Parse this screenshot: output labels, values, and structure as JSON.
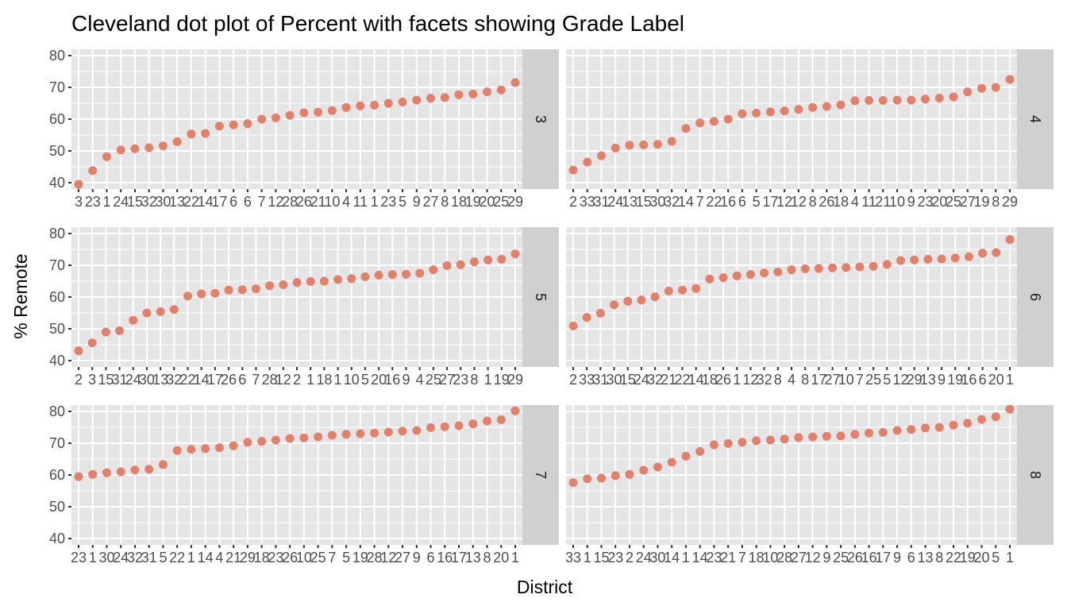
{
  "chart_data": {
    "type": "scatter",
    "title": "Cleveland dot plot of Percent with facets showing Grade Label",
    "xlabel": "District",
    "ylabel": "% Remote",
    "ylim": [
      38,
      82
    ],
    "yticks": [
      40,
      50,
      60,
      70,
      80
    ],
    "grid": true,
    "legend": "none",
    "colors": {
      "point": "#E2806A",
      "panel_bg": "#E5E5E5",
      "grid": "#FFFFFF",
      "strip_bg": "#D0D0D0",
      "tick_text": "#4D4D4D"
    },
    "facets": [
      {
        "label": "3",
        "categories": [
          "3",
          "23",
          "1",
          "24",
          "15",
          "32",
          "30",
          "13",
          "22",
          "14",
          "17",
          "6",
          "6",
          "7",
          "12",
          "28",
          "26",
          "21",
          "10",
          "4",
          "11",
          "1",
          "23",
          "5",
          "9",
          "27",
          "8",
          "18",
          "19",
          "20",
          "25",
          "29"
        ],
        "tick_labels": [
          "3",
          "23",
          "1",
          "24",
          "15",
          "32",
          "30",
          "13",
          "22",
          "14",
          "17",
          "6",
          "6",
          "7",
          "12",
          "28",
          "26",
          "21",
          "10",
          "4",
          "11",
          "1",
          "23",
          "5",
          "9",
          "27",
          "8",
          "18",
          "19",
          "20",
          "25",
          "29"
        ],
        "values": [
          39.5,
          43.8,
          48.2,
          50.3,
          50.7,
          51.0,
          51.6,
          52.9,
          55.3,
          55.5,
          57.8,
          58.2,
          58.6,
          60.0,
          60.4,
          61.2,
          62.0,
          62.2,
          62.7,
          63.7,
          64.2,
          64.4,
          65.0,
          65.4,
          66.0,
          66.6,
          66.8,
          67.7,
          67.9,
          68.6,
          69.2,
          71.5
        ]
      },
      {
        "label": "4",
        "categories": [
          "2",
          "33",
          "31",
          "24",
          "13",
          "15",
          "30",
          "32",
          "14",
          "7",
          "22",
          "16",
          "6",
          "5",
          "17",
          "12",
          "12",
          "8",
          "26",
          "18",
          "4",
          "11",
          "21",
          "10",
          "9",
          "23",
          "20",
          "25",
          "27",
          "19",
          "8",
          "29"
        ],
        "tick_labels": [
          "2",
          "33",
          "31",
          "24",
          "13",
          "15",
          "30",
          "32",
          "14",
          "7",
          "22",
          "16",
          "6",
          "5",
          "17",
          "12",
          "12",
          "8",
          "26",
          "18",
          "4",
          "11",
          "21",
          "10",
          "9",
          "23",
          "20",
          "25",
          "27",
          "19",
          "8",
          "29"
        ],
        "values": [
          44.0,
          46.5,
          48.5,
          50.9,
          51.8,
          51.9,
          52.1,
          53.0,
          57.1,
          58.8,
          59.3,
          60.0,
          61.7,
          61.9,
          62.3,
          62.6,
          63.1,
          63.7,
          64.0,
          64.5,
          65.8,
          65.9,
          65.9,
          66.0,
          66.0,
          66.3,
          66.6,
          67.0,
          68.6,
          69.7,
          70.0,
          72.5
        ]
      },
      {
        "label": "5",
        "categories": [
          "2",
          "3",
          "15",
          "31",
          "24",
          "30",
          "13",
          "32",
          "22",
          "14",
          "17",
          "26",
          "6",
          "7",
          "28",
          "12",
          "2",
          "1",
          "18",
          "1",
          "10",
          "5",
          "20",
          "16",
          "9",
          "4",
          "25",
          "27",
          "23",
          "8",
          "1",
          "19",
          "29"
        ],
        "tick_labels": [
          "2",
          "3",
          "15",
          "31",
          "24",
          "30",
          "13",
          "32",
          "22",
          "14",
          "17",
          "26",
          "6",
          "7",
          "28",
          "12",
          "2",
          "1",
          "18",
          "1",
          "10",
          "5",
          "20",
          "16",
          "9",
          "4",
          "25",
          "27",
          "23",
          "8",
          "1",
          "19",
          "29"
        ],
        "values": [
          43.1,
          45.6,
          49.0,
          49.4,
          52.7,
          55.0,
          55.4,
          56.1,
          60.3,
          61.0,
          61.2,
          62.2,
          62.3,
          62.6,
          63.6,
          63.9,
          64.6,
          64.9,
          65.0,
          65.5,
          65.8,
          66.4,
          66.9,
          67.1,
          67.2,
          67.5,
          68.6,
          69.9,
          70.2,
          71.1,
          71.7,
          71.9,
          73.6
        ]
      },
      {
        "label": "6",
        "categories": [
          "2",
          "33",
          "31",
          "30",
          "15",
          "24",
          "32",
          "21",
          "22",
          "14",
          "18",
          "26",
          "1",
          "12",
          "32",
          "8",
          "4",
          "8",
          "17",
          "27",
          "10",
          "7",
          "25",
          "5",
          "12",
          "29",
          "13",
          "9",
          "19",
          "16",
          "6",
          "20",
          "1"
        ],
        "tick_labels": [
          "2",
          "33",
          "31",
          "30",
          "15",
          "24",
          "32",
          "21",
          "22",
          "14",
          "18",
          "26",
          "1",
          "12",
          "32",
          "8",
          "4",
          "8",
          "17",
          "27",
          "10",
          "7",
          "25",
          "5",
          "12",
          "29",
          "13",
          "9",
          "19",
          "16",
          "6",
          "20",
          "1"
        ],
        "values": [
          50.9,
          53.6,
          54.9,
          57.6,
          58.7,
          59.1,
          60.1,
          61.9,
          62.2,
          62.7,
          65.7,
          66.1,
          66.7,
          67.1,
          67.6,
          67.9,
          68.6,
          68.9,
          69.0,
          69.2,
          69.3,
          69.5,
          69.7,
          70.3,
          71.5,
          71.7,
          71.9,
          72.0,
          72.3,
          72.7,
          73.8,
          74.0,
          78.1
        ]
      },
      {
        "label": "7",
        "categories": [
          "23",
          "1",
          "30",
          "24",
          "32",
          "31",
          "5",
          "22",
          "1",
          "14",
          "4",
          "21",
          "29",
          "18",
          "23",
          "26",
          "10",
          "25",
          "7",
          "5",
          "19",
          "28",
          "12",
          "27",
          "9",
          "6",
          "16",
          "17",
          "13",
          "8",
          "20",
          "1"
        ],
        "tick_labels": [
          "23",
          "1",
          "30",
          "24",
          "32",
          "31",
          "5",
          "22",
          "1",
          "14",
          "4",
          "21",
          "29",
          "18",
          "23",
          "26",
          "10",
          "25",
          "7",
          "5",
          "19",
          "28",
          "12",
          "27",
          "9",
          "6",
          "16",
          "17",
          "13",
          "8",
          "20",
          "1"
        ],
        "values": [
          59.5,
          60.2,
          60.7,
          61.0,
          61.6,
          61.8,
          63.3,
          67.7,
          68.1,
          68.3,
          68.6,
          69.2,
          70.3,
          70.6,
          71.0,
          71.5,
          71.7,
          72.0,
          72.5,
          72.8,
          73.0,
          73.2,
          73.5,
          73.8,
          74.0,
          74.9,
          75.2,
          75.5,
          76.1,
          77.0,
          77.4,
          80.2
        ]
      },
      {
        "label": "8",
        "categories": [
          "33",
          "1",
          "15",
          "23",
          "2",
          "24",
          "30",
          "14",
          "1",
          "14",
          "23",
          "21",
          "7",
          "18",
          "10",
          "28",
          "27",
          "12",
          "9",
          "25",
          "26",
          "16",
          "17",
          "9",
          "6",
          "13",
          "8",
          "22",
          "19",
          "20",
          "5",
          "1"
        ],
        "tick_labels": [
          "33",
          "1",
          "15",
          "23",
          "2",
          "24",
          "30",
          "14",
          "1",
          "14",
          "23",
          "21",
          "7",
          "18",
          "10",
          "28",
          "27",
          "12",
          "9",
          "25",
          "26",
          "16",
          "17",
          "9",
          "6",
          "13",
          "8",
          "22",
          "19",
          "20",
          "5",
          "1"
        ],
        "values": [
          57.6,
          58.8,
          59.0,
          59.8,
          60.2,
          61.5,
          62.5,
          64.0,
          65.9,
          67.4,
          69.5,
          69.9,
          70.3,
          70.8,
          71.0,
          71.3,
          71.8,
          72.0,
          72.2,
          72.3,
          72.8,
          73.2,
          73.4,
          74.0,
          74.3,
          74.8,
          75.0,
          75.7,
          76.3,
          77.5,
          78.3,
          80.7
        ]
      }
    ]
  }
}
